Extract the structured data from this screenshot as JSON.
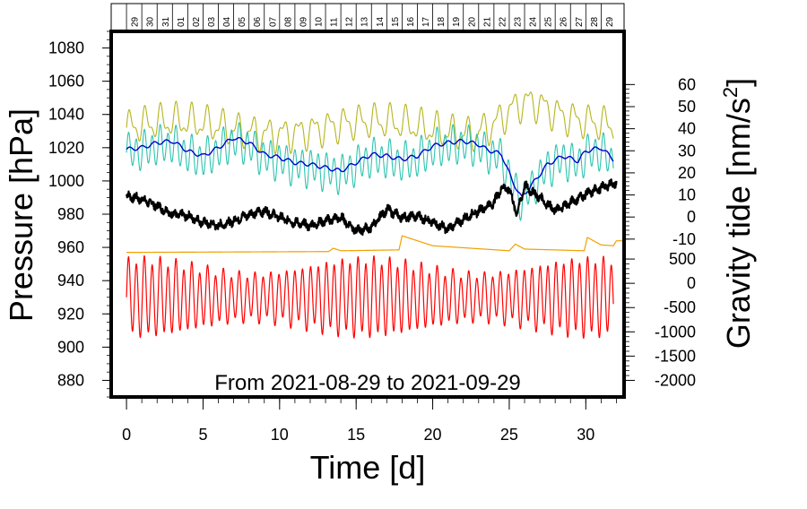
{
  "chart_data": {
    "type": "line",
    "range_label": "From 2021-08-29 to 2021-09-29",
    "xlabel": "Time [d]",
    "ylabel_left": "Pressure [hPa]",
    "ylabel_right_main": "Gravity tide [nm/s",
    "ylabel_right_sup": "2",
    "ylabel_right_tail": "]",
    "xlim": [
      -1,
      32.5
    ],
    "ylim_left": [
      870,
      1090
    ],
    "x_ticks": [
      "0",
      "5",
      "10",
      "15",
      "20",
      "25",
      "30"
    ],
    "x_tick_values": [
      0,
      5,
      10,
      15,
      20,
      25,
      30
    ],
    "y_ticks_left": [
      "880",
      "900",
      "920",
      "940",
      "960",
      "980",
      "1000",
      "1020",
      "1040",
      "1060",
      "1080"
    ],
    "y_ticks_left_values": [
      880,
      900,
      920,
      940,
      960,
      980,
      1000,
      1020,
      1040,
      1060,
      1080
    ],
    "right_axis_upper": {
      "ticks": [
        "-10",
        "0",
        "10",
        "20",
        "30",
        "40",
        "50",
        "60"
      ],
      "tick_values": [
        -10,
        0,
        10,
        20,
        30,
        40,
        50,
        60
      ],
      "pressure_equiv": [
        965,
        1058
      ]
    },
    "right_axis_lower": {
      "ticks": [
        "-2000",
        "-1500",
        "-1000",
        "-500",
        "0",
        "500"
      ],
      "tick_values": [
        -2000,
        -1500,
        -1000,
        -500,
        0,
        500
      ],
      "pressure_equiv": [
        880,
        953
      ]
    },
    "date_labels": [
      "29",
      "30",
      "31",
      "01",
      "02",
      "03",
      "04",
      "05",
      "06",
      "07",
      "08",
      "09",
      "10",
      "11",
      "12",
      "13",
      "14",
      "15",
      "16",
      "17",
      "18",
      "19",
      "20",
      "21",
      "22",
      "23",
      "24",
      "25",
      "26",
      "27",
      "28",
      "29"
    ],
    "series": [
      {
        "name": "Gravity tide",
        "color": "#ff0000",
        "base": 930,
        "amplitude": 18,
        "period_days": 0.517
      },
      {
        "name": "Auxiliary (orange)",
        "color": "#f0a000",
        "points": [
          [
            0,
            957
          ],
          [
            13.2,
            957.5
          ],
          [
            13.5,
            959.5
          ],
          [
            14,
            958
          ],
          [
            17.8,
            958.5
          ],
          [
            18,
            967
          ],
          [
            20,
            961
          ],
          [
            25,
            958
          ],
          [
            25.4,
            962
          ],
          [
            26,
            959
          ],
          [
            29.9,
            958
          ],
          [
            30.1,
            966
          ],
          [
            31,
            961.5
          ],
          [
            31.8,
            961
          ],
          [
            32,
            964
          ],
          [
            32.5,
            964
          ]
        ]
      },
      {
        "name": "Series (olive)",
        "color": "#b5b51e",
        "base": 1032,
        "amplitude": 8,
        "period_days": 1.0
      },
      {
        "name": "Series (turquoise)",
        "color": "#2ec4b0",
        "base": 1015,
        "amplitude": 10,
        "period_days": 0.517
      },
      {
        "name": "Smoothed (blue)",
        "color": "#0000cc",
        "points": [
          [
            0,
            1019
          ],
          [
            1,
            1020
          ],
          [
            2,
            1023
          ],
          [
            3,
            1024
          ],
          [
            4,
            1018
          ],
          [
            5,
            1015
          ],
          [
            6,
            1020
          ],
          [
            7,
            1026
          ],
          [
            8,
            1023
          ],
          [
            9,
            1016
          ],
          [
            10,
            1014
          ],
          [
            11,
            1011
          ],
          [
            12,
            1010
          ],
          [
            13,
            1008
          ],
          [
            14,
            1006
          ],
          [
            15,
            1011
          ],
          [
            16,
            1016
          ],
          [
            17,
            1015
          ],
          [
            18,
            1013
          ],
          [
            19,
            1015
          ],
          [
            20,
            1021
          ],
          [
            21,
            1023
          ],
          [
            22,
            1024
          ],
          [
            23,
            1022
          ],
          [
            23.5,
            1019
          ],
          [
            24.5,
            1016
          ],
          [
            25.2,
            1000
          ],
          [
            25.8,
            990
          ],
          [
            26.5,
            998
          ],
          [
            27.5,
            1010
          ],
          [
            28.5,
            1015
          ],
          [
            29.5,
            1012
          ],
          [
            30,
            1018
          ],
          [
            31,
            1020
          ],
          [
            31.8,
            1013
          ]
        ]
      },
      {
        "name": "Pressure (black)",
        "color": "#000000",
        "points": [
          [
            0,
            991
          ],
          [
            1,
            989
          ],
          [
            2,
            985
          ],
          [
            3,
            980
          ],
          [
            4,
            979
          ],
          [
            5,
            975
          ],
          [
            6,
            973
          ],
          [
            7,
            976
          ],
          [
            8,
            980
          ],
          [
            9,
            982
          ],
          [
            10,
            978
          ],
          [
            11,
            975
          ],
          [
            12,
            973
          ],
          [
            13,
            976
          ],
          [
            14,
            978
          ],
          [
            15,
            970
          ],
          [
            16,
            972
          ],
          [
            17,
            983
          ],
          [
            18,
            978
          ],
          [
            19,
            979
          ],
          [
            20,
            975
          ],
          [
            21,
            971
          ],
          [
            22,
            977
          ],
          [
            23,
            982
          ],
          [
            24,
            987
          ],
          [
            24.5,
            996
          ],
          [
            25,
            995
          ],
          [
            25.5,
            980
          ],
          [
            26,
            997
          ],
          [
            27,
            990
          ],
          [
            28,
            982
          ],
          [
            29,
            987
          ],
          [
            30,
            992
          ],
          [
            31,
            996
          ],
          [
            32,
            999
          ]
        ]
      }
    ]
  }
}
